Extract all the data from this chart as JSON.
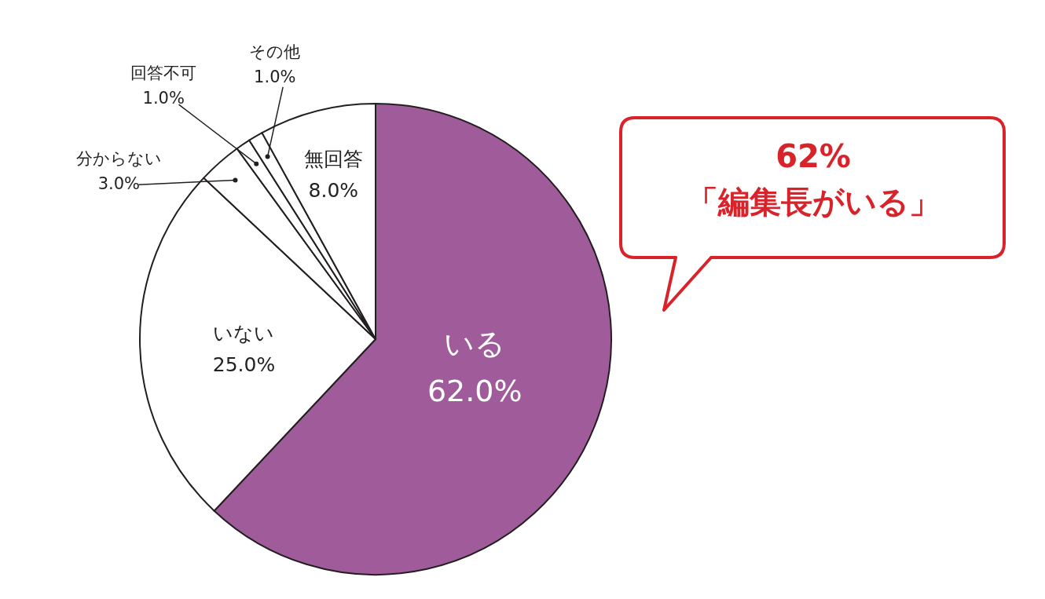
{
  "chart_data": {
    "type": "pie",
    "categories": [
      "いる",
      "いない",
      "分からない",
      "回答不可",
      "その他",
      "無回答"
    ],
    "values": [
      62,
      25,
      3,
      1,
      1,
      8
    ],
    "value_labels": [
      "62.0%",
      "25.0%",
      "3.0%",
      "1.0%",
      "1.0%",
      "8.0%"
    ],
    "colors": [
      "#a05c9a",
      "#ffffff",
      "#ffffff",
      "#ffffff",
      "#ffffff",
      "#ffffff"
    ],
    "annotations": [
      "62%\n「編集長がいる」"
    ]
  }
}
